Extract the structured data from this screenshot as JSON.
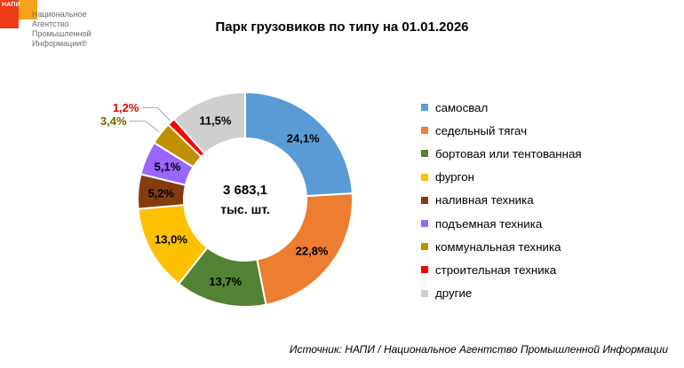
{
  "logo": {
    "small_text": "НАПИ",
    "lines": [
      "Национальное",
      "Агентство",
      "Промышленной",
      "Информации®"
    ]
  },
  "chart_data": {
    "type": "pie",
    "donut": true,
    "title": "Парк грузовиков по типу на 01.01.2026",
    "center_label_line1": "3 683,1",
    "center_label_line2": "тыс. шт.",
    "legend_position": "right",
    "slices": [
      {
        "label": "самосвал",
        "value": 24.1,
        "display": "24,1%",
        "color": "#5b9bd5"
      },
      {
        "label": "седельный тягач",
        "value": 22.8,
        "display": "22,8%",
        "color": "#ed7d31"
      },
      {
        "label": "бортовая или тентованная",
        "value": 13.7,
        "display": "13,7%",
        "color": "#548235"
      },
      {
        "label": "фургон",
        "value": 13.0,
        "display": "13,0%",
        "color": "#ffc000"
      },
      {
        "label": "наливная техника",
        "value": 5.2,
        "display": "5,2%",
        "color": "#843c0c"
      },
      {
        "label": "подъемная техника",
        "value": 5.1,
        "display": "5,1%",
        "color": "#9966ff"
      },
      {
        "label": "коммунальная техника",
        "value": 3.4,
        "display": "3,4%",
        "color": "#bf9000"
      },
      {
        "label": "строительная техника",
        "value": 1.2,
        "display": "1,2%",
        "color": "#ff0000"
      },
      {
        "label": "другие",
        "value": 11.5,
        "display": "11,5%",
        "color": "#d0cece"
      }
    ]
  },
  "source": "Источник: НАПИ / Национальное Агентство Промышленной Информации"
}
